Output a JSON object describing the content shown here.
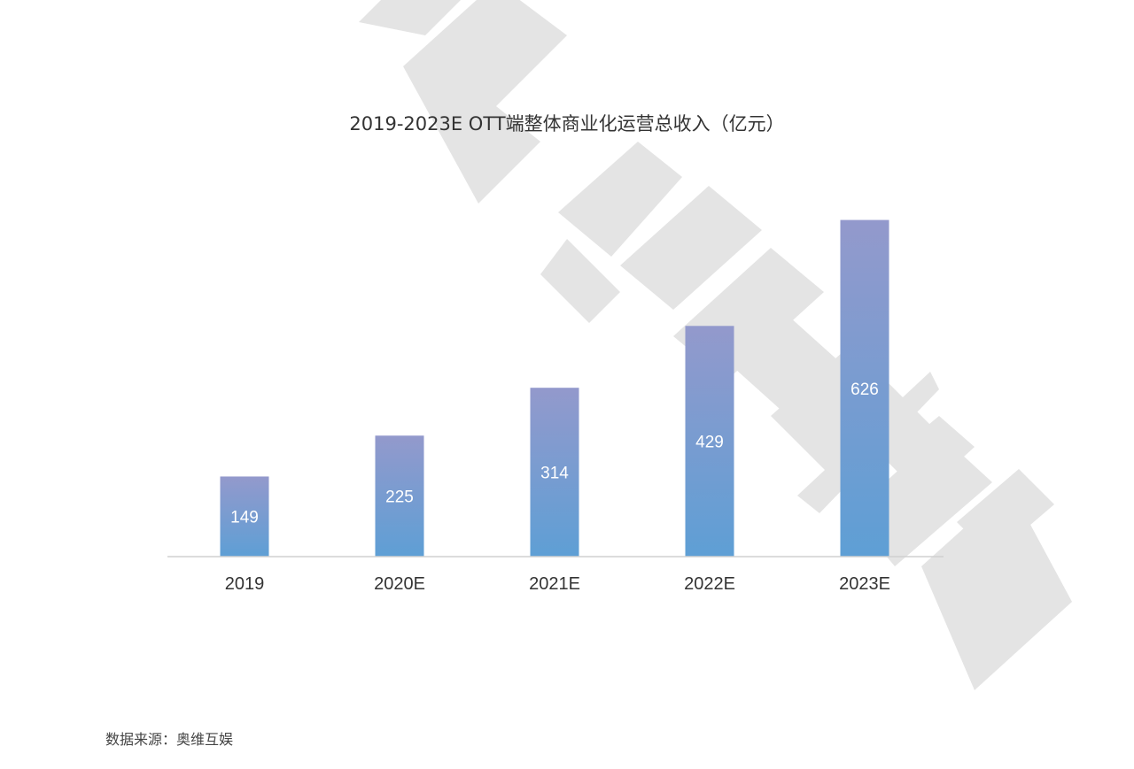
{
  "chart_data": {
    "type": "bar",
    "title": "2019-2023E OTT端整体商业化运营总收入（亿元）",
    "categories": [
      "2019",
      "2020E",
      "2021E",
      "2022E",
      "2023E"
    ],
    "values": [
      149,
      225,
      314,
      429,
      626
    ],
    "xlabel": "",
    "ylabel": "",
    "ylim": [
      0,
      650
    ],
    "grid": false,
    "legend": "none",
    "bar_gradient": {
      "top": "#9399cc",
      "bottom": "#5e9fd5"
    },
    "label_color": "#ffffff",
    "axis_color": "#d0d0d0"
  },
  "source": "数据来源：奥维互娱",
  "watermark": {
    "color": "#e4e4e4"
  }
}
